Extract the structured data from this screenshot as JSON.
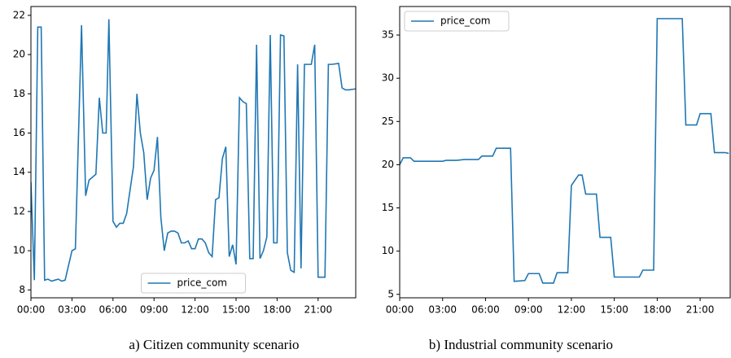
{
  "chart_data": [
    {
      "type": "line",
      "caption": "a) Citizen community scenario",
      "x": [
        0,
        0.25,
        0.5,
        0.75,
        1,
        1.25,
        1.5,
        1.75,
        2,
        2.25,
        2.5,
        3,
        3.25,
        3.7,
        4,
        4.25,
        4.75,
        5,
        5.25,
        5.5,
        5.7,
        6,
        6.25,
        6.5,
        6.75,
        7,
        7.5,
        7.75,
        8,
        8.25,
        8.5,
        8.75,
        9,
        9.25,
        9.5,
        9.75,
        10,
        10.25,
        10.5,
        10.75,
        11,
        11.25,
        11.5,
        11.75,
        12,
        12.25,
        12.5,
        12.75,
        13,
        13.25,
        13.5,
        13.75,
        14,
        14.25,
        14.5,
        14.75,
        15,
        15.25,
        15.5,
        15.75,
        16,
        16.25,
        16.5,
        16.75,
        17,
        17.25,
        17.5,
        17.75,
        18,
        18.25,
        18.5,
        18.75,
        19,
        19.25,
        19.5,
        19.75,
        20,
        20.25,
        20.5,
        20.75,
        21,
        21.25,
        21.5,
        21.75,
        22,
        22.5,
        22.75,
        23,
        23.25,
        23.75
      ],
      "series": [
        {
          "name": "price_com",
          "color": "#1f77b4",
          "values": [
            13.5,
            8.5,
            21.4,
            21.4,
            8.5,
            8.55,
            8.45,
            8.5,
            8.55,
            8.45,
            8.5,
            10.0,
            10.1,
            21.5,
            12.8,
            13.6,
            13.9,
            17.8,
            16.0,
            16.0,
            21.8,
            11.5,
            11.2,
            11.4,
            11.4,
            11.9,
            14.3,
            18.0,
            16.0,
            15.0,
            12.6,
            13.7,
            14.1,
            15.8,
            11.7,
            10.0,
            10.9,
            11.0,
            11.0,
            10.9,
            10.4,
            10.4,
            10.5,
            10.1,
            10.1,
            10.6,
            10.6,
            10.4,
            9.9,
            9.7,
            12.6,
            12.7,
            14.7,
            15.3,
            9.7,
            10.3,
            9.3,
            17.8,
            17.6,
            17.5,
            9.6,
            9.6,
            20.5,
            9.6,
            10.0,
            10.7,
            21.0,
            10.4,
            10.4,
            21.0,
            20.95,
            9.9,
            9.0,
            8.9,
            19.5,
            9.1,
            19.5,
            19.5,
            19.5,
            20.5,
            8.65,
            8.65,
            8.65,
            19.5,
            19.5,
            19.55,
            18.3,
            18.2,
            18.2,
            18.25
          ]
        }
      ],
      "xlim": [
        0,
        23.75
      ],
      "ylim": [
        7.6,
        22.45
      ],
      "xticks": [
        {
          "value": 0,
          "label": "00:00"
        },
        {
          "value": 3,
          "label": "03:00"
        },
        {
          "value": 6,
          "label": "06:00"
        },
        {
          "value": 9,
          "label": "09:00"
        },
        {
          "value": 12,
          "label": "12:00"
        },
        {
          "value": 15,
          "label": "15:00"
        },
        {
          "value": 18,
          "label": "18:00"
        },
        {
          "value": 21,
          "label": "21:00"
        }
      ],
      "yticks": [
        8,
        10,
        12,
        14,
        16,
        18,
        20,
        22
      ],
      "legend": "lower center"
    },
    {
      "type": "line",
      "caption": "b) Industrial community scenario",
      "x": [
        0,
        0.25,
        0.75,
        1,
        2,
        3,
        3.25,
        4,
        4.5,
        5.5,
        5.75,
        6.5,
        6.75,
        7.75,
        8,
        8.75,
        9,
        9.75,
        10,
        10.75,
        11,
        11.75,
        12,
        12.5,
        12.75,
        13,
        13.75,
        14,
        14.75,
        15,
        16,
        16.75,
        17,
        17.75,
        18,
        19.75,
        20,
        20.75,
        21,
        21.75,
        22,
        22.75,
        23
      ],
      "series": [
        {
          "name": "price_com",
          "color": "#1f77b4",
          "values": [
            20.0,
            20.8,
            20.8,
            20.4,
            20.4,
            20.4,
            20.5,
            20.5,
            20.6,
            20.6,
            21.0,
            21.0,
            21.9,
            21.9,
            6.5,
            6.6,
            7.4,
            7.4,
            6.3,
            6.3,
            7.5,
            7.5,
            17.6,
            18.8,
            18.8,
            16.6,
            16.6,
            11.6,
            11.6,
            7.0,
            7.0,
            7.0,
            7.8,
            7.8,
            36.9,
            36.9,
            24.6,
            24.6,
            25.9,
            25.9,
            21.4,
            21.4,
            21.3
          ]
        }
      ],
      "xlim": [
        0,
        23.1
      ],
      "ylim": [
        4.6,
        38.3
      ],
      "xticks": [
        {
          "value": 0,
          "label": "00:00"
        },
        {
          "value": 3,
          "label": "03:00"
        },
        {
          "value": 6,
          "label": "06:00"
        },
        {
          "value": 9,
          "label": "09:00"
        },
        {
          "value": 12,
          "label": "12:00"
        },
        {
          "value": 15,
          "label": "15:00"
        },
        {
          "value": 18,
          "label": "18:00"
        },
        {
          "value": 21,
          "label": "21:00"
        }
      ],
      "yticks": [
        5,
        10,
        15,
        20,
        25,
        30,
        35
      ],
      "legend": "upper left"
    }
  ]
}
